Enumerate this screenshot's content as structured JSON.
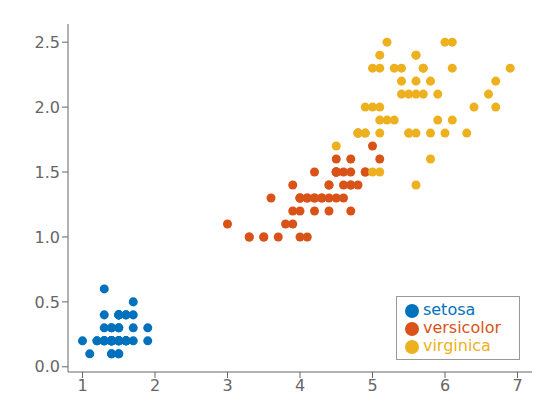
{
  "chart_data": {
    "type": "scatter",
    "series": [
      {
        "name": "setosa",
        "color": "#0072BD",
        "marker": "circle",
        "x": [
          1.4,
          1.4,
          1.3,
          1.5,
          1.4,
          1.7,
          1.4,
          1.5,
          1.4,
          1.5,
          1.5,
          1.6,
          1.4,
          1.1,
          1.2,
          1.5,
          1.3,
          1.4,
          1.7,
          1.5,
          1.7,
          1.5,
          1.0,
          1.7,
          1.9,
          1.6,
          1.6,
          1.5,
          1.4,
          1.6,
          1.6,
          1.5,
          1.5,
          1.4,
          1.5,
          1.2,
          1.3,
          1.4,
          1.3,
          1.5,
          1.3,
          1.3,
          1.3,
          1.6,
          1.9,
          1.4,
          1.6,
          1.4,
          1.5,
          1.4
        ],
        "y": [
          0.2,
          0.2,
          0.2,
          0.2,
          0.2,
          0.4,
          0.3,
          0.2,
          0.2,
          0.1,
          0.2,
          0.2,
          0.1,
          0.1,
          0.2,
          0.4,
          0.4,
          0.3,
          0.3,
          0.3,
          0.2,
          0.4,
          0.2,
          0.5,
          0.2,
          0.2,
          0.4,
          0.2,
          0.2,
          0.2,
          0.2,
          0.4,
          0.1,
          0.2,
          0.2,
          0.2,
          0.2,
          0.1,
          0.2,
          0.3,
          0.3,
          0.2,
          0.6,
          0.4,
          0.3,
          0.2,
          0.2,
          0.2,
          0.4,
          0.2
        ]
      },
      {
        "name": "versicolor",
        "color": "#D95319",
        "marker": "circle",
        "x": [
          4.7,
          4.5,
          4.9,
          4.0,
          4.6,
          4.5,
          4.7,
          3.3,
          4.6,
          3.9,
          3.5,
          4.2,
          4.0,
          4.7,
          3.6,
          4.4,
          4.5,
          4.1,
          4.5,
          3.9,
          4.8,
          4.0,
          4.9,
          4.7,
          4.3,
          4.4,
          4.8,
          5.0,
          4.5,
          3.5,
          3.8,
          3.7,
          3.9,
          5.1,
          4.5,
          4.5,
          4.7,
          4.4,
          4.1,
          4.0,
          4.4,
          4.6,
          4.0,
          3.3,
          4.2,
          4.2,
          4.2,
          4.3,
          3.0,
          4.1
        ],
        "y": [
          1.4,
          1.5,
          1.5,
          1.3,
          1.5,
          1.3,
          1.6,
          1.0,
          1.3,
          1.4,
          1.0,
          1.5,
          1.0,
          1.4,
          1.3,
          1.4,
          1.5,
          1.0,
          1.5,
          1.1,
          1.8,
          1.3,
          1.5,
          1.2,
          1.3,
          1.4,
          1.4,
          1.7,
          1.5,
          1.0,
          1.1,
          1.0,
          1.2,
          1.6,
          1.5,
          1.6,
          1.5,
          1.3,
          1.3,
          1.3,
          1.2,
          1.4,
          1.2,
          1.0,
          1.3,
          1.2,
          1.3,
          1.3,
          1.1,
          1.3
        ]
      },
      {
        "name": "virginica",
        "color": "#EDB120",
        "marker": "circle",
        "x": [
          6.0,
          5.1,
          5.9,
          5.6,
          5.8,
          6.6,
          4.5,
          6.3,
          5.8,
          6.1,
          5.1,
          5.3,
          5.5,
          5.0,
          5.1,
          5.3,
          5.5,
          6.7,
          6.9,
          5.0,
          5.7,
          4.9,
          6.7,
          4.9,
          5.7,
          6.0,
          4.8,
          4.9,
          5.6,
          5.8,
          6.1,
          6.4,
          5.6,
          5.1,
          5.6,
          6.1,
          5.6,
          5.5,
          4.8,
          5.4,
          5.6,
          5.1,
          5.9,
          5.7,
          5.2,
          5.0,
          5.2,
          5.4,
          5.1,
          5.4
        ],
        "y": [
          2.5,
          1.9,
          2.1,
          1.8,
          2.2,
          2.1,
          1.7,
          1.8,
          1.8,
          2.5,
          2.0,
          1.9,
          2.1,
          2.0,
          2.4,
          2.3,
          1.8,
          2.2,
          2.3,
          1.5,
          2.3,
          2.0,
          2.0,
          1.8,
          2.1,
          1.8,
          1.8,
          1.8,
          2.1,
          1.6,
          1.9,
          2.0,
          2.2,
          1.5,
          1.4,
          2.3,
          2.4,
          1.8,
          1.8,
          2.1,
          2.4,
          2.3,
          1.9,
          2.3,
          2.5,
          2.3,
          1.9,
          2.3,
          1.8,
          2.2
        ]
      }
    ],
    "xlim": [
      0.8,
      7.2
    ],
    "ylim": [
      -0.04,
      2.64
    ],
    "xticks": [
      1,
      2,
      3,
      4,
      5,
      6,
      7
    ],
    "yticks": [
      {
        "value": 0,
        "label": "0.0"
      },
      0.5,
      {
        "value": 1.0,
        "label": "1.0"
      },
      1.5,
      {
        "value": 2.0,
        "label": "2.0"
      },
      2.5
    ],
    "legend": "lower right",
    "grid": false
  }
}
